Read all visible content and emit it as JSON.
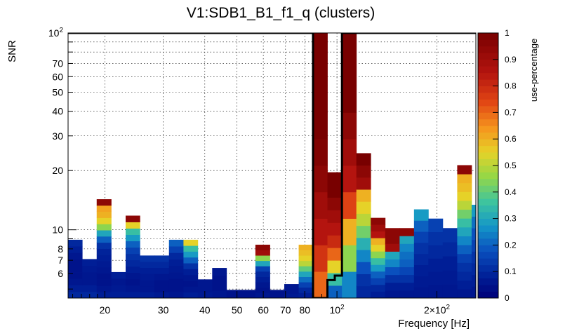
{
  "chart_data": {
    "type": "heatmap",
    "title": "V1:SDB1_B1_f1_q (clusters)",
    "xlabel": "Frequency [Hz]",
    "ylabel": "SNR",
    "zlabel": "use-percentage",
    "x_scale": "log",
    "y_scale": "log",
    "xlim": [
      15.5,
      262
    ],
    "ylim": [
      4.5,
      100
    ],
    "zlim": [
      0,
      1
    ],
    "grid": true,
    "x_tick_labels": [
      {
        "value": 20,
        "label": "20"
      },
      {
        "value": 30,
        "label": "30"
      },
      {
        "value": 40,
        "label": "40"
      },
      {
        "value": 50,
        "label": "50"
      },
      {
        "value": 60,
        "label": "60"
      },
      {
        "value": 70,
        "label": "70"
      },
      {
        "value": 80,
        "label": "80"
      },
      {
        "value": 100,
        "label": "10",
        "exp": "2"
      },
      {
        "value": 200,
        "label": "2×10",
        "exp": "2"
      }
    ],
    "y_tick_labels": [
      {
        "value": 6,
        "label": "6"
      },
      {
        "value": 7,
        "label": "7"
      },
      {
        "value": 8,
        "label": "8"
      },
      {
        "value": 10,
        "label": "10"
      },
      {
        "value": 20,
        "label": "20"
      },
      {
        "value": 30,
        "label": "30"
      },
      {
        "value": 40,
        "label": "40"
      },
      {
        "value": 50,
        "label": "50"
      },
      {
        "value": 60,
        "label": "60"
      },
      {
        "value": 70,
        "label": "70"
      },
      {
        "value": 100,
        "label": "10",
        "exp": "2"
      }
    ],
    "z_tick_labels": [
      "0",
      "0.1",
      "0.2",
      "0.3",
      "0.4",
      "0.5",
      "0.6",
      "0.7",
      "0.8",
      "0.9",
      "1"
    ],
    "columns": [
      {
        "f0": 15.5,
        "f1": 17.1,
        "top": 8.9,
        "v": [
          0.1,
          0.08,
          0.06,
          0.05,
          0.05,
          0.05,
          0.06,
          0.08,
          0.1
        ]
      },
      {
        "f0": 17.1,
        "f1": 18.9,
        "top": 7.1,
        "v": [
          0.1,
          0.08,
          0.06,
          0.06,
          0.07,
          0.08
        ]
      },
      {
        "f0": 18.9,
        "f1": 20.9,
        "top": 14.3,
        "v": [
          0.08,
          0.06,
          0.05,
          0.05,
          0.06,
          0.07,
          0.08,
          0.09,
          0.12,
          0.2,
          0.3,
          0.45,
          0.55,
          0.6,
          0.62,
          0.95
        ]
      },
      {
        "f0": 20.9,
        "f1": 23.1,
        "top": 6.1,
        "v": [
          0.08,
          0.07,
          0.06,
          0.08
        ]
      },
      {
        "f0": 23.1,
        "f1": 25.5,
        "top": 11.8,
        "v": [
          0.08,
          0.06,
          0.05,
          0.06,
          0.08,
          0.1,
          0.12,
          0.15,
          0.2,
          0.28,
          0.35,
          0.55,
          0.95
        ]
      },
      {
        "f0": 25.5,
        "f1": 28.2,
        "top": 7.4,
        "v": [
          0.08,
          0.06,
          0.06,
          0.07,
          0.08,
          0.1,
          0.12
        ]
      },
      {
        "f0": 28.2,
        "f1": 31.2,
        "top": 7.4,
        "v": [
          0.07,
          0.05,
          0.05,
          0.06,
          0.08,
          0.1,
          0.12
        ]
      },
      {
        "f0": 31.2,
        "f1": 34.5,
        "top": 8.9,
        "v": [
          0.06,
          0.05,
          0.05,
          0.06,
          0.07,
          0.08,
          0.1,
          0.15,
          0.2
        ]
      },
      {
        "f0": 34.5,
        "f1": 38.1,
        "top": 8.9,
        "v": [
          0.08,
          0.06,
          0.05,
          0.06,
          0.08,
          0.12,
          0.2,
          0.28,
          0.35,
          0.55
        ]
      },
      {
        "f0": 38.1,
        "f1": 42.1,
        "top": 5.6,
        "v": [
          0.07,
          0.06,
          0.06
        ]
      },
      {
        "f0": 42.1,
        "f1": 46.5,
        "top": 6.4,
        "v": [
          0.06,
          0.05,
          0.05,
          0.06
        ]
      },
      {
        "f0": 46.5,
        "f1": 51.4,
        "top": 4.95,
        "v": [
          0.05
        ]
      },
      {
        "f0": 51.4,
        "f1": 56.8,
        "top": 4.95,
        "v": [
          0.05
        ]
      },
      {
        "f0": 56.8,
        "f1": 62.8,
        "top": 8.4,
        "v": [
          0.06,
          0.05,
          0.06,
          0.08,
          0.1,
          0.15,
          0.3,
          0.45,
          0.9,
          0.95
        ]
      },
      {
        "f0": 62.8,
        "f1": 69.4,
        "top": 4.95,
        "v": [
          0.05
        ]
      },
      {
        "f0": 69.4,
        "f1": 76.7,
        "top": 5.3,
        "v": [
          0.07,
          0.06,
          0.06
        ]
      },
      {
        "f0": 76.7,
        "f1": 84.7,
        "top": 8.4,
        "v": [
          0.08,
          0.1,
          0.15,
          0.22,
          0.3,
          0.4,
          0.5,
          0.55,
          0.58,
          0.6
        ]
      },
      {
        "f0": 84.7,
        "f1": 93.6,
        "top": 100,
        "v": [
          0.7,
          0.78,
          0.85,
          0.9,
          0.95,
          0.98,
          1,
          1,
          1,
          1
        ]
      },
      {
        "f0": 93.6,
        "f1": 103.5,
        "top": 19.6,
        "v": [
          0.2,
          0.35,
          0.55,
          0.7,
          0.8,
          0.85,
          0.9,
          0.95,
          1,
          1
        ]
      },
      {
        "f0": 103.5,
        "f1": 114.4,
        "top": 100,
        "v": [
          0.25,
          0.45,
          0.6,
          0.75,
          0.85,
          0.9,
          0.95,
          1,
          1,
          1
        ]
      },
      {
        "f0": 114.4,
        "f1": 126.4,
        "top": 24.5,
        "v": [
          0.1,
          0.12,
          0.18,
          0.25,
          0.32,
          0.42,
          0.5,
          0.55,
          0.6,
          0.9,
          0.95,
          1
        ]
      },
      {
        "f0": 126.4,
        "f1": 139.7,
        "top": 11.5,
        "v": [
          0.08,
          0.1,
          0.15,
          0.2,
          0.28,
          0.35,
          0.45,
          0.55,
          0.6,
          0.85,
          0.9,
          0.95
        ]
      },
      {
        "f0": 139.7,
        "f1": 154.4,
        "top": 10.2,
        "v": [
          0.06,
          0.08,
          0.12,
          0.18,
          0.25,
          0.3,
          0.9,
          0.95,
          0.95
        ]
      },
      {
        "f0": 154.4,
        "f1": 170.6,
        "top": 10.2,
        "v": [
          0.06,
          0.08,
          0.12,
          0.16,
          0.2,
          0.22,
          0.25,
          0.3,
          0.95
        ]
      },
      {
        "f0": 170.6,
        "f1": 188.5,
        "top": 12.7,
        "v": [
          0.06,
          0.07,
          0.08,
          0.1,
          0.12,
          0.15,
          0.2,
          0.28
        ]
      },
      {
        "f0": 188.5,
        "f1": 208.3,
        "top": 11.4,
        "v": [
          0.06,
          0.07,
          0.08,
          0.1,
          0.12,
          0.15
        ]
      },
      {
        "f0": 208.3,
        "f1": 230.2,
        "top": 10.2,
        "v": [
          0.06,
          0.07,
          0.08,
          0.1,
          0.12
        ]
      },
      {
        "f0": 230.2,
        "f1": 254.4,
        "top": 21.3,
        "v": [
          0.06,
          0.08,
          0.1,
          0.12,
          0.15,
          0.2,
          0.25,
          0.3,
          0.35,
          0.42,
          0.5,
          0.55,
          0.58,
          0.6,
          0.95
        ]
      },
      {
        "f0": 254.4,
        "f1": 262,
        "top": 13.4,
        "v": [
          0.06,
          0.08,
          0.1,
          0.12,
          0.15,
          0.18,
          0.22,
          0.28
        ]
      }
    ],
    "outline": [
      [
        15.5,
        100
      ],
      [
        84.7,
        100
      ],
      [
        84.7,
        4.5
      ],
      [
        93.6,
        4.5
      ],
      [
        93.6,
        5.55
      ],
      [
        98.5,
        5.55
      ],
      [
        98.5,
        5.85
      ],
      [
        103.5,
        5.85
      ],
      [
        103.5,
        100
      ],
      [
        262,
        100
      ]
    ]
  }
}
